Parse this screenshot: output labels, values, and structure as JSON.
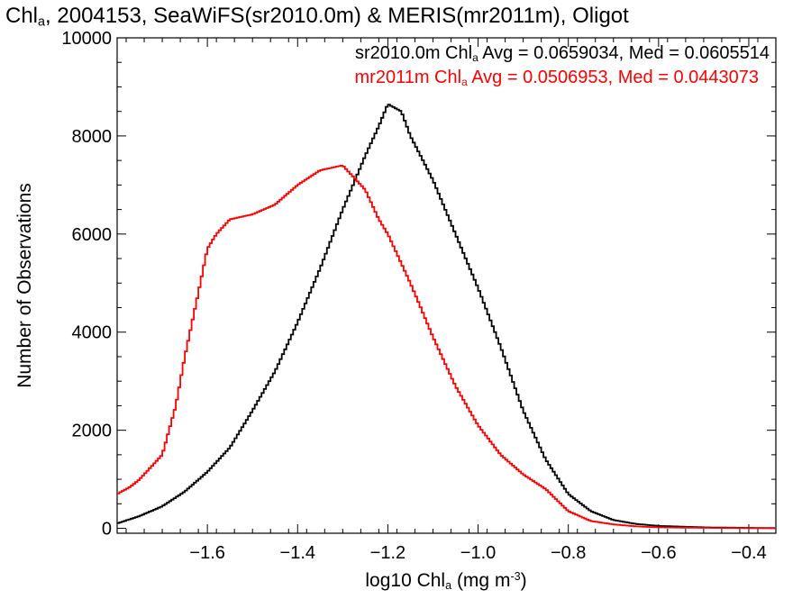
{
  "chart_data": {
    "type": "line",
    "title": {
      "pre": "Chl",
      "sub": "a",
      "post": ", 2004153, SeaWiFS(sr2010.0m) & MERIS(mr2011m), Oligot"
    },
    "xlabel": {
      "pre": "log10 Chl",
      "sub": "a",
      "post": " (mg m",
      "sup": "-3",
      "end": ")"
    },
    "ylabel": "Number of Observations",
    "xlim": [
      -1.8,
      -0.34
    ],
    "ylim": [
      -100,
      10000
    ],
    "xticks": [
      -1.6,
      -1.4,
      -1.2,
      -1.0,
      -0.8,
      -0.6,
      -0.4
    ],
    "xtick_labels": [
      "−1.6",
      "−1.4",
      "−1.2",
      "−1.0",
      "−0.8",
      "−0.6",
      "−0.4"
    ],
    "yticks": [
      0,
      2000,
      4000,
      6000,
      8000,
      10000
    ],
    "ytick_labels": [
      "0",
      "2000",
      "4000",
      "6000",
      "8000",
      "10000"
    ],
    "annotations": [
      {
        "name": "sr2010.0m",
        "pre": "sr2010.0m Chl",
        "sub": "a",
        "post": " Avg = 0.0659034, Med = 0.0605514",
        "color": "#000000"
      },
      {
        "name": "mr2011m",
        "pre": "mr2011m Chl",
        "sub": "a",
        "post": " Avg = 0.0506953, Med = 0.0443073",
        "color": "#ff0000"
      }
    ],
    "series": [
      {
        "name": "sr2010.0m",
        "color": "#000000",
        "x": [
          -1.8,
          -1.75,
          -1.7,
          -1.65,
          -1.6,
          -1.55,
          -1.5,
          -1.45,
          -1.4,
          -1.35,
          -1.3,
          -1.25,
          -1.22,
          -1.2,
          -1.17,
          -1.15,
          -1.1,
          -1.05,
          -1.0,
          -0.95,
          -0.9,
          -0.85,
          -0.8,
          -0.75,
          -0.7,
          -0.65,
          -0.6,
          -0.5,
          -0.4,
          -0.34
        ],
        "y": [
          100,
          250,
          450,
          750,
          1150,
          1650,
          2400,
          3200,
          4200,
          5300,
          6500,
          7600,
          8200,
          8650,
          8500,
          8000,
          7100,
          6000,
          4900,
          3700,
          2400,
          1400,
          700,
          350,
          170,
          90,
          50,
          20,
          10,
          5
        ]
      },
      {
        "name": "mr2011m",
        "color": "#ff0000",
        "x": [
          -1.8,
          -1.77,
          -1.75,
          -1.7,
          -1.67,
          -1.65,
          -1.62,
          -1.6,
          -1.58,
          -1.55,
          -1.5,
          -1.45,
          -1.4,
          -1.35,
          -1.3,
          -1.25,
          -1.22,
          -1.2,
          -1.15,
          -1.1,
          -1.05,
          -1.0,
          -0.95,
          -0.9,
          -0.85,
          -0.8,
          -0.75,
          -0.7,
          -0.65,
          -0.6,
          -0.5,
          -0.4,
          -0.34
        ],
        "y": [
          700,
          850,
          1000,
          1500,
          2500,
          3500,
          4800,
          5700,
          6000,
          6300,
          6400,
          6600,
          7000,
          7300,
          7400,
          6900,
          6300,
          6000,
          5000,
          3900,
          2900,
          2100,
          1500,
          1100,
          800,
          350,
          150,
          80,
          40,
          20,
          10,
          5,
          3
        ]
      }
    ]
  }
}
